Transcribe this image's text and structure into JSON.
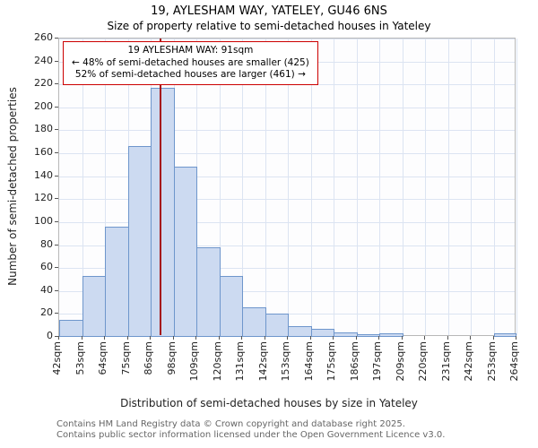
{
  "title": "19, AYLESHAM WAY, YATELEY, GU46 6NS",
  "subtitle": "Size of property relative to semi-detached houses in Yateley",
  "annotation": {
    "line1": "19 AYLESHAM WAY: 91sqm",
    "line2": "← 48% of semi-detached houses are smaller (425)",
    "line3": "52% of semi-detached houses are larger (461) →"
  },
  "footer": {
    "line1": "Contains HM Land Registry data © Crown copyright and database right 2025.",
    "line2": "Contains public sector information licensed under the Open Government Licence v3.0."
  },
  "chart_data": {
    "type": "bar",
    "title": "19, AYLESHAM WAY, YATELEY, GU46 6NS",
    "subtitle": "Size of property relative to semi-detached houses in Yateley",
    "xlabel": "Distribution of semi-detached houses by size in Yateley",
    "ylabel": "Number of semi-detached properties",
    "ylim": [
      0,
      260
    ],
    "ytick_step": 20,
    "grid": true,
    "bin_edges_sqm": [
      42,
      53,
      64,
      75,
      86,
      98,
      109,
      120,
      131,
      142,
      153,
      164,
      175,
      186,
      197,
      209,
      220,
      231,
      242,
      253,
      264
    ],
    "xtick_labels": [
      "42sqm",
      "53sqm",
      "64sqm",
      "75sqm",
      "86sqm",
      "98sqm",
      "109sqm",
      "120sqm",
      "131sqm",
      "142sqm",
      "153sqm",
      "164sqm",
      "175sqm",
      "186sqm",
      "197sqm",
      "209sqm",
      "220sqm",
      "231sqm",
      "242sqm",
      "253sqm",
      "264sqm"
    ],
    "values": [
      15,
      53,
      96,
      166,
      217,
      148,
      78,
      53,
      26,
      20,
      9,
      7,
      4,
      2,
      3,
      0,
      0,
      0,
      0,
      3
    ],
    "marker_value_sqm": 91,
    "colors": {
      "bar_fill": "#ccdaf1",
      "bar_border": "#6e96cc",
      "marker_line": "#a51212",
      "annotation_border": "#cc0000",
      "grid": "#dce4f2"
    }
  }
}
